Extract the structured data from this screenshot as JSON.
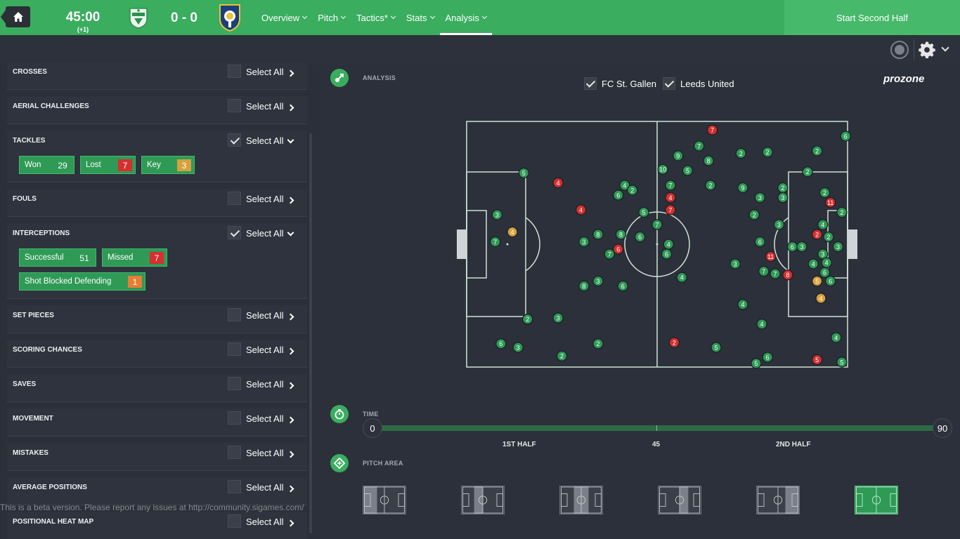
{
  "header": {
    "clock": "45:00",
    "added_time": "(+1)",
    "score": "0 - 0",
    "nav": [
      {
        "label": "Overview"
      },
      {
        "label": "Pitch"
      },
      {
        "label": "Tactics*"
      },
      {
        "label": "Stats"
      },
      {
        "label": "Analysis"
      }
    ],
    "active_nav": "Analysis",
    "start_button": "Start Second Half"
  },
  "colors": {
    "accent": "#3aad5f",
    "marker_green": "#2f9a56",
    "marker_red": "#d62f2f",
    "marker_yellow": "#d7a13d",
    "marker_orange": "#e67e33"
  },
  "categories": [
    {
      "title": "CROSSES",
      "select_label": "Select All",
      "checked": false
    },
    {
      "title": "AERIAL CHALLENGES",
      "select_label": "Select All",
      "checked": false
    },
    {
      "title": "TACKLES",
      "select_label": "Select All",
      "checked": true,
      "chips": [
        {
          "label": "Won",
          "count": "29",
          "color": "green"
        },
        {
          "label": "Lost",
          "count": "7",
          "color": "red"
        },
        {
          "label": "Key",
          "count": "3",
          "color": "yellow"
        }
      ]
    },
    {
      "title": "FOULS",
      "select_label": "Select All",
      "checked": false
    },
    {
      "title": "INTERCEPTIONS",
      "select_label": "Select All",
      "checked": true,
      "chips": [
        {
          "label": "Successful",
          "count": "51",
          "color": "green"
        },
        {
          "label": "Missed",
          "count": "7",
          "color": "red"
        },
        {
          "label": "Shot Blocked Defending",
          "count": "1",
          "color": "orange"
        }
      ]
    },
    {
      "title": "SET PIECES",
      "select_label": "Select All",
      "checked": false
    },
    {
      "title": "SCORING CHANCES",
      "select_label": "Select All",
      "checked": false
    },
    {
      "title": "SAVES",
      "select_label": "Select All",
      "checked": false
    },
    {
      "title": "MOVEMENT",
      "select_label": "Select All",
      "checked": false
    },
    {
      "title": "MISTAKES",
      "select_label": "Select All",
      "checked": false
    },
    {
      "title": "AVERAGE POSITIONS",
      "select_label": "Select All",
      "checked": false
    },
    {
      "title": "POSITIONAL HEAT MAP",
      "select_label": "Select All",
      "checked": false
    }
  ],
  "beta_note": "This is a beta version. Please report any issues at http://community.sigames.com/",
  "analysis": {
    "section_label": "ANALYSIS",
    "teams": [
      {
        "name": "FC St. Gallen",
        "checked": true
      },
      {
        "name": "Leeds United",
        "checked": true
      }
    ],
    "brand": "prozone",
    "markers": [
      {
        "n": 7,
        "x": 0.645,
        "y": 0.035,
        "c": "red"
      },
      {
        "n": 6,
        "x": 0.995,
        "y": 0.06,
        "c": "green"
      },
      {
        "n": 7,
        "x": 0.61,
        "y": 0.1,
        "c": "green"
      },
      {
        "n": 2,
        "x": 0.72,
        "y": 0.13,
        "c": "green"
      },
      {
        "n": 2,
        "x": 0.79,
        "y": 0.125,
        "c": "green"
      },
      {
        "n": 2,
        "x": 0.92,
        "y": 0.12,
        "c": "green"
      },
      {
        "n": 9,
        "x": 0.555,
        "y": 0.14,
        "c": "green"
      },
      {
        "n": 8,
        "x": 0.635,
        "y": 0.16,
        "c": "green"
      },
      {
        "n": 10,
        "x": 0.515,
        "y": 0.195,
        "c": "green"
      },
      {
        "n": 5,
        "x": 0.58,
        "y": 0.2,
        "c": "green"
      },
      {
        "n": 2,
        "x": 0.895,
        "y": 0.205,
        "c": "green"
      },
      {
        "n": 5,
        "x": 0.15,
        "y": 0.21,
        "c": "green"
      },
      {
        "n": 4,
        "x": 0.24,
        "y": 0.25,
        "c": "red"
      },
      {
        "n": 4,
        "x": 0.415,
        "y": 0.26,
        "c": "green"
      },
      {
        "n": 2,
        "x": 0.435,
        "y": 0.28,
        "c": "green"
      },
      {
        "n": 6,
        "x": 0.398,
        "y": 0.3,
        "c": "green"
      },
      {
        "n": 7,
        "x": 0.535,
        "y": 0.26,
        "c": "green"
      },
      {
        "n": 2,
        "x": 0.64,
        "y": 0.26,
        "c": "green"
      },
      {
        "n": 9,
        "x": 0.725,
        "y": 0.27,
        "c": "green"
      },
      {
        "n": 2,
        "x": 0.83,
        "y": 0.27,
        "c": "green"
      },
      {
        "n": 2,
        "x": 0.94,
        "y": 0.29,
        "c": "green"
      },
      {
        "n": 4,
        "x": 0.535,
        "y": 0.31,
        "c": "red"
      },
      {
        "n": 3,
        "x": 0.77,
        "y": 0.31,
        "c": "green"
      },
      {
        "n": 3,
        "x": 0.83,
        "y": 0.31,
        "c": "green"
      },
      {
        "n": 11,
        "x": 0.955,
        "y": 0.33,
        "c": "red"
      },
      {
        "n": 4,
        "x": 0.3,
        "y": 0.36,
        "c": "red"
      },
      {
        "n": 7,
        "x": 0.535,
        "y": 0.36,
        "c": "red"
      },
      {
        "n": 5,
        "x": 0.465,
        "y": 0.37,
        "c": "green"
      },
      {
        "n": 2,
        "x": 0.755,
        "y": 0.38,
        "c": "green"
      },
      {
        "n": 2,
        "x": 0.985,
        "y": 0.37,
        "c": "green"
      },
      {
        "n": 3,
        "x": 0.08,
        "y": 0.38,
        "c": "green"
      },
      {
        "n": 4,
        "x": 0.935,
        "y": 0.42,
        "c": "green"
      },
      {
        "n": 7,
        "x": 0.5,
        "y": 0.42,
        "c": "green"
      },
      {
        "n": 3,
        "x": 0.82,
        "y": 0.42,
        "c": "green"
      },
      {
        "n": 4,
        "x": 0.12,
        "y": 0.45,
        "c": "yellow"
      },
      {
        "n": 8,
        "x": 0.345,
        "y": 0.46,
        "c": "green"
      },
      {
        "n": 8,
        "x": 0.405,
        "y": 0.46,
        "c": "green"
      },
      {
        "n": 2,
        "x": 0.92,
        "y": 0.46,
        "c": "red"
      },
      {
        "n": 2,
        "x": 0.95,
        "y": 0.47,
        "c": "green"
      },
      {
        "n": 6,
        "x": 0.455,
        "y": 0.47,
        "c": "green"
      },
      {
        "n": 7,
        "x": 0.075,
        "y": 0.49,
        "c": "green"
      },
      {
        "n": 3,
        "x": 0.308,
        "y": 0.49,
        "c": "green"
      },
      {
        "n": 4,
        "x": 0.53,
        "y": 0.5,
        "c": "green"
      },
      {
        "n": 6,
        "x": 0.77,
        "y": 0.49,
        "c": "green"
      },
      {
        "n": 6,
        "x": 0.855,
        "y": 0.51,
        "c": "green"
      },
      {
        "n": 3,
        "x": 0.88,
        "y": 0.51,
        "c": "green"
      },
      {
        "n": 3,
        "x": 0.975,
        "y": 0.51,
        "c": "green"
      },
      {
        "n": 6,
        "x": 0.398,
        "y": 0.52,
        "c": "red"
      },
      {
        "n": 7,
        "x": 0.375,
        "y": 0.54,
        "c": "green"
      },
      {
        "n": 6,
        "x": 0.525,
        "y": 0.54,
        "c": "green"
      },
      {
        "n": 11,
        "x": 0.798,
        "y": 0.55,
        "c": "red"
      },
      {
        "n": 3,
        "x": 0.935,
        "y": 0.54,
        "c": "green"
      },
      {
        "n": 3,
        "x": 0.705,
        "y": 0.58,
        "c": "green"
      },
      {
        "n": 4,
        "x": 0.91,
        "y": 0.58,
        "c": "green"
      },
      {
        "n": 4,
        "x": 0.945,
        "y": 0.575,
        "c": "green"
      },
      {
        "n": 7,
        "x": 0.78,
        "y": 0.61,
        "c": "green"
      },
      {
        "n": 7,
        "x": 0.81,
        "y": 0.62,
        "c": "green"
      },
      {
        "n": 8,
        "x": 0.843,
        "y": 0.625,
        "c": "red"
      },
      {
        "n": 6,
        "x": 0.94,
        "y": 0.615,
        "c": "green"
      },
      {
        "n": 4,
        "x": 0.565,
        "y": 0.635,
        "c": "green"
      },
      {
        "n": 5,
        "x": 0.92,
        "y": 0.65,
        "c": "yellow"
      },
      {
        "n": 6,
        "x": 0.955,
        "y": 0.65,
        "c": "green"
      },
      {
        "n": 3,
        "x": 0.345,
        "y": 0.65,
        "c": "green"
      },
      {
        "n": 8,
        "x": 0.308,
        "y": 0.67,
        "c": "green"
      },
      {
        "n": 6,
        "x": 0.41,
        "y": 0.67,
        "c": "green"
      },
      {
        "n": 4,
        "x": 0.93,
        "y": 0.72,
        "c": "yellow"
      },
      {
        "n": 4,
        "x": 0.725,
        "y": 0.745,
        "c": "green"
      },
      {
        "n": 2,
        "x": 0.16,
        "y": 0.805,
        "c": "green"
      },
      {
        "n": 3,
        "x": 0.24,
        "y": 0.8,
        "c": "green"
      },
      {
        "n": 4,
        "x": 0.775,
        "y": 0.825,
        "c": "green"
      },
      {
        "n": 4,
        "x": 0.97,
        "y": 0.88,
        "c": "green"
      },
      {
        "n": 6,
        "x": 0.09,
        "y": 0.905,
        "c": "green"
      },
      {
        "n": 3,
        "x": 0.135,
        "y": 0.92,
        "c": "green"
      },
      {
        "n": 2,
        "x": 0.345,
        "y": 0.905,
        "c": "green"
      },
      {
        "n": 2,
        "x": 0.545,
        "y": 0.9,
        "c": "red"
      },
      {
        "n": 5,
        "x": 0.655,
        "y": 0.92,
        "c": "green"
      },
      {
        "n": 2,
        "x": 0.25,
        "y": 0.955,
        "c": "green"
      },
      {
        "n": 6,
        "x": 0.79,
        "y": 0.96,
        "c": "green"
      },
      {
        "n": 5,
        "x": 0.76,
        "y": 0.985,
        "c": "green"
      },
      {
        "n": 5,
        "x": 0.92,
        "y": 0.97,
        "c": "red"
      },
      {
        "n": 5,
        "x": 0.985,
        "y": 0.98,
        "c": "green"
      }
    ]
  },
  "time": {
    "section_label": "TIME",
    "start": "0",
    "end": "90",
    "first_half": "1ST HALF",
    "midpoint": "45",
    "second_half": "2ND HALF"
  },
  "pitch_area": {
    "section_label": "PITCH AREA",
    "options": [
      {
        "name": "left-third",
        "active": false
      },
      {
        "name": "left-middle",
        "active": false
      },
      {
        "name": "centre",
        "active": false
      },
      {
        "name": "right-middle",
        "active": false
      },
      {
        "name": "right-third",
        "active": false
      },
      {
        "name": "whole-pitch",
        "active": true
      }
    ]
  }
}
